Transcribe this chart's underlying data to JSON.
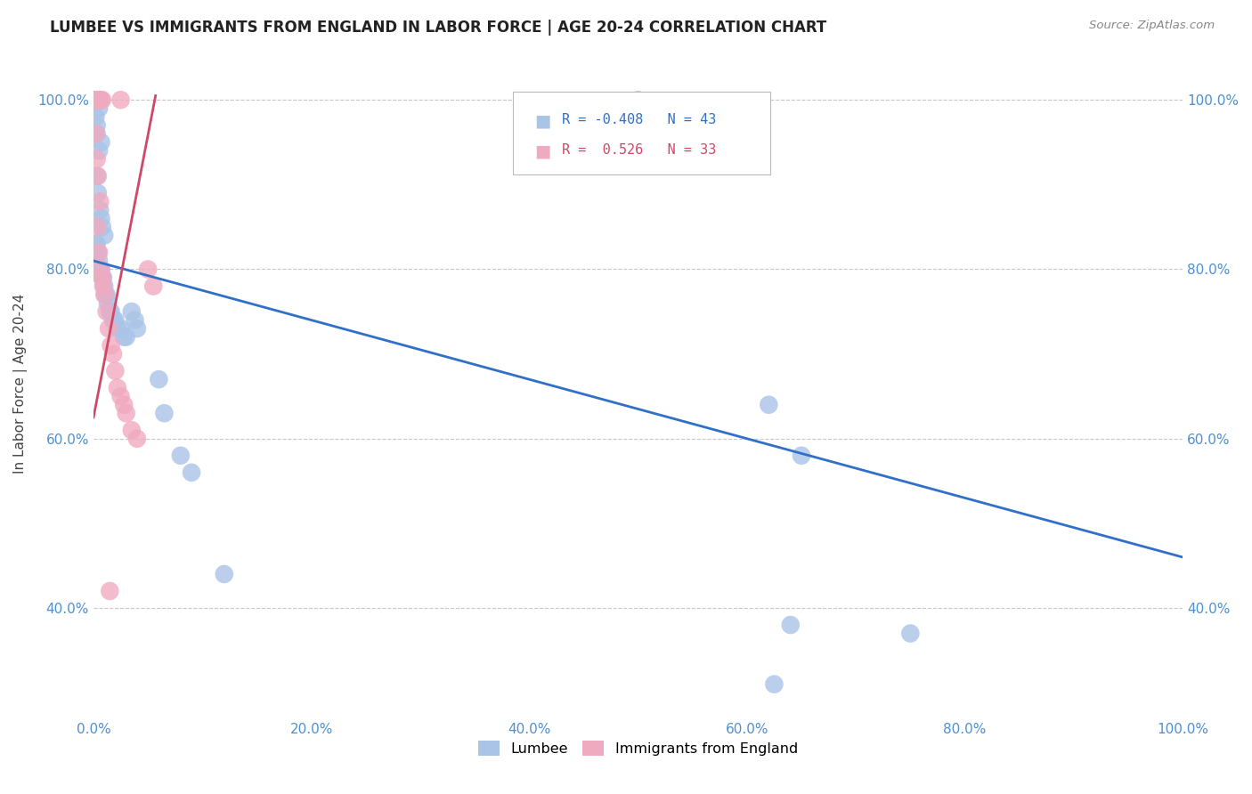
{
  "title": "LUMBEE VS IMMIGRANTS FROM ENGLAND IN LABOR FORCE | AGE 20-24 CORRELATION CHART",
  "source": "Source: ZipAtlas.com",
  "ylabel": "In Labor Force | Age 20-24",
  "blue_color": "#aac4e8",
  "pink_color": "#f0aac0",
  "blue_line_color": "#3070c8",
  "pink_line_color": "#d04868",
  "background_color": "#ffffff",
  "grid_color": "#c8c8c8",
  "tick_color": "#5090d0",
  "blue_scatter": [
    [
      0.005,
      1.0
    ],
    [
      0.005,
      0.99
    ],
    [
      0.002,
      0.98
    ],
    [
      0.003,
      0.97
    ],
    [
      0.003,
      0.96
    ],
    [
      0.007,
      0.95
    ],
    [
      0.005,
      0.94
    ],
    [
      0.003,
      0.91
    ],
    [
      0.004,
      0.89
    ],
    [
      0.006,
      0.87
    ],
    [
      0.007,
      0.86
    ],
    [
      0.008,
      0.85
    ],
    [
      0.01,
      0.84
    ],
    [
      0.002,
      0.83
    ],
    [
      0.003,
      0.83
    ],
    [
      0.004,
      0.82
    ],
    [
      0.005,
      0.81
    ],
    [
      0.006,
      0.8
    ],
    [
      0.007,
      0.8
    ],
    [
      0.008,
      0.79
    ],
    [
      0.009,
      0.79
    ],
    [
      0.01,
      0.78
    ],
    [
      0.011,
      0.77
    ],
    [
      0.012,
      0.77
    ],
    [
      0.013,
      0.76
    ],
    [
      0.015,
      0.75
    ],
    [
      0.016,
      0.75
    ],
    [
      0.018,
      0.74
    ],
    [
      0.02,
      0.74
    ],
    [
      0.022,
      0.73
    ],
    [
      0.025,
      0.73
    ],
    [
      0.028,
      0.72
    ],
    [
      0.03,
      0.72
    ],
    [
      0.035,
      0.75
    ],
    [
      0.038,
      0.74
    ],
    [
      0.04,
      0.73
    ],
    [
      0.06,
      0.67
    ],
    [
      0.065,
      0.63
    ],
    [
      0.08,
      0.58
    ],
    [
      0.09,
      0.56
    ],
    [
      0.12,
      0.44
    ],
    [
      0.5,
      1.0
    ],
    [
      0.62,
      0.64
    ],
    [
      0.65,
      0.58
    ],
    [
      0.64,
      0.38
    ],
    [
      0.75,
      0.37
    ],
    [
      0.625,
      0.31
    ]
  ],
  "pink_scatter": [
    [
      0.001,
      1.0
    ],
    [
      0.002,
      1.0
    ],
    [
      0.003,
      1.0
    ],
    [
      0.004,
      1.0
    ],
    [
      0.005,
      1.0
    ],
    [
      0.006,
      1.0
    ],
    [
      0.007,
      1.0
    ],
    [
      0.008,
      1.0
    ],
    [
      0.025,
      1.0
    ],
    [
      0.002,
      0.96
    ],
    [
      0.003,
      0.93
    ],
    [
      0.004,
      0.91
    ],
    [
      0.006,
      0.88
    ],
    [
      0.003,
      0.85
    ],
    [
      0.005,
      0.82
    ],
    [
      0.007,
      0.8
    ],
    [
      0.008,
      0.79
    ],
    [
      0.009,
      0.78
    ],
    [
      0.01,
      0.77
    ],
    [
      0.012,
      0.75
    ],
    [
      0.014,
      0.73
    ],
    [
      0.016,
      0.71
    ],
    [
      0.018,
      0.7
    ],
    [
      0.02,
      0.68
    ],
    [
      0.022,
      0.66
    ],
    [
      0.025,
      0.65
    ],
    [
      0.028,
      0.64
    ],
    [
      0.03,
      0.63
    ],
    [
      0.035,
      0.61
    ],
    [
      0.04,
      0.6
    ],
    [
      0.05,
      0.8
    ],
    [
      0.055,
      0.78
    ],
    [
      0.015,
      0.42
    ]
  ],
  "xlim": [
    0.0,
    1.0
  ],
  "ylim": [
    0.27,
    1.06
  ],
  "xticks": [
    0.0,
    0.2,
    0.4,
    0.6,
    0.8,
    1.0
  ],
  "yticks": [
    0.4,
    0.6,
    0.8,
    1.0
  ],
  "xticklabels": [
    "0.0%",
    "20.0%",
    "40.0%",
    "60.0%",
    "80.0%",
    "100.0%"
  ],
  "yticklabels": [
    "40.0%",
    "60.0%",
    "80.0%",
    "100.0%"
  ],
  "blue_trendline_x": [
    0.0,
    1.0
  ],
  "blue_trendline_y": [
    0.81,
    0.46
  ],
  "pink_trendline_x": [
    0.0,
    0.057
  ],
  "pink_trendline_y": [
    0.625,
    1.005
  ]
}
